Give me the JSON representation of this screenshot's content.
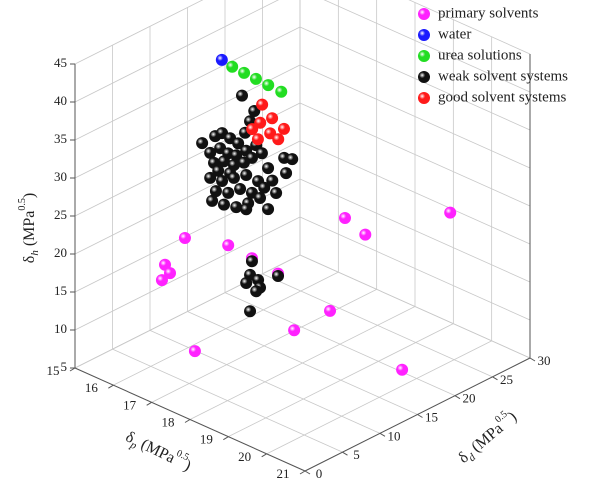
{
  "chart_data": {
    "type": "scatter3d",
    "x_label": {
      "base": "δ",
      "sub": "p",
      "unit": " (MPa",
      "sup": "0.5",
      "close": ")"
    },
    "y_label": {
      "base": "δ",
      "sub": "d",
      "unit": " (MPa",
      "sup": "0.5",
      "close": ")"
    },
    "z_label": {
      "base": "δ",
      "sub": "h",
      "unit": " (MPa",
      "sup": "0.5",
      "close": ")"
    },
    "xlim": [
      15,
      21
    ],
    "xticks": [
      15,
      16,
      17,
      18,
      19,
      20,
      21
    ],
    "ylim": [
      0,
      30
    ],
    "yticks": [
      0,
      5,
      10,
      15,
      20,
      25,
      30
    ],
    "zlim": [
      5,
      45
    ],
    "zticks": [
      5,
      10,
      15,
      20,
      25,
      30,
      35,
      40,
      45
    ],
    "grid": true,
    "legend": "top-right",
    "series": [
      {
        "name": "primary solvents",
        "color": "#ff22ff",
        "x": [
          16.89,
          16.37,
          16.5,
          16.29,
          17.15,
          17.04,
          17.66,
          18.34,
          18.76,
          17.74,
          18.13,
          18.66,
          19.62,
          19.31
        ],
        "y": [
          5,
          5,
          5,
          5,
          5,
          10,
          10,
          10,
          10,
          20,
          20,
          20,
          20,
          28
        ],
        "z": [
          23.9,
          19.2,
          18.4,
          17.0,
          9.6,
          20.8,
          20.5,
          20.0,
          13.5,
          8.8,
          21.9,
          20.9,
          5.3,
          21.3
        ]
      },
      {
        "name": "water",
        "color": "#1a1aff",
        "x": [
          15.7
        ],
        "y": [
          16
        ],
        "z": [
          39.2
        ]
      },
      {
        "name": "urea solutions",
        "color": "#22dd22",
        "x": [
          15.97,
          16.28,
          16.59,
          16.91,
          17.25
        ],
        "y": [
          16,
          16,
          16,
          16,
          16
        ],
        "z": [
          38.9,
          38.8,
          38.7,
          38.6,
          38.5
        ]
      },
      {
        "name": "weak solvent systems",
        "color": "#111111",
        "x": [
          17.4,
          17.72,
          17.61,
          16.36,
          16.7,
          16.88,
          17.09,
          17.3,
          17.48,
          16.57,
          16.83,
          17.04,
          17.25,
          17.51,
          17.77,
          16.67,
          16.93,
          17.19,
          17.45,
          17.66,
          17.92,
          16.78,
          17.09,
          18.08,
          18.5,
          18.71,
          18.55,
          16.57,
          16.88,
          17.19,
          17.51,
          17.82,
          16.72,
          17.04,
          17.35,
          17.66,
          17.98,
          16.62,
          16.93,
          17.25,
          17.56,
          17.87,
          18.19,
          18.29,
          18.08,
          17.51,
          17.66,
          17.61,
          17.82,
          17.51,
          17.87,
          18.34,
          17.77,
          17.61
        ],
        "y": [
          10,
          10,
          10,
          10,
          10,
          10,
          10,
          10,
          10,
          10,
          10,
          10,
          10,
          10,
          10,
          10,
          10,
          10,
          10,
          10,
          10,
          10,
          10,
          10,
          10,
          10,
          10,
          10,
          10,
          10,
          10,
          10,
          10,
          10,
          10,
          10,
          10,
          10,
          10,
          10,
          10,
          10,
          10,
          10,
          10,
          10,
          10,
          10,
          10,
          10,
          10,
          10,
          10,
          10
        ],
        "z": [
          41.3,
          40.0,
          38.4,
          32.7,
          34.4,
          35.2,
          35.0,
          34.8,
          36.6,
          31.9,
          33.1,
          32.9,
          33.1,
          34.3,
          35.6,
          30.8,
          31.6,
          31.7,
          32.6,
          33.7,
          34.9,
          30.0,
          30.4,
          33.3,
          35.6,
          35.9,
          33.7,
          28.6,
          28.9,
          30.0,
          31.1,
          31.0,
          27.2,
          27.7,
          28.9,
          29.1,
          30.5,
          25.7,
          25.9,
          26.3,
          27.5,
          28.9,
          31.9,
          30.5,
          27.9,
          26.6,
          20.1,
          18.2,
          18.0,
          16.9,
          17.1,
          19.7,
          16.4,
          13.4
        ]
      },
      {
        "name": "good solvent systems",
        "color": "#ff1a1a",
        "x": [
          16.36,
          16.62,
          16.31,
          16.93,
          16.1,
          16.57,
          16.25,
          16.78
        ],
        "y": [
          18,
          18,
          18,
          18,
          18,
          18,
          18,
          18
        ],
        "z": [
          33.8,
          32.6,
          31.3,
          31.9,
          30.0,
          30.5,
          29.0,
          30.2
        ]
      }
    ]
  }
}
